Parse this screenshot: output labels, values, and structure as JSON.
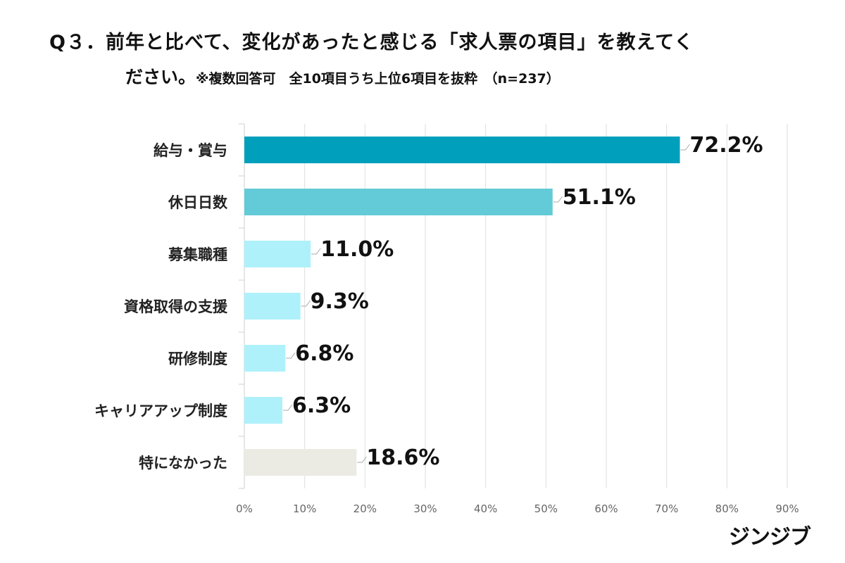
{
  "title_line1": "Q３．前年と比べて、変化があったと感じる「求人票の項目」を教えてく",
  "title_line2": "ださい。",
  "title_note": "※複数回答可　全10項目うち上位6項目を抜粋　（n=237）",
  "logo": "ジンジブ",
  "chart_data": {
    "type": "bar",
    "orientation": "horizontal",
    "categories": [
      "給与・賞与",
      "休日日数",
      "募集職種",
      "資格取得の支援",
      "研修制度",
      "キャリアアップ制度",
      "特になかった"
    ],
    "values": [
      72.2,
      51.1,
      11.0,
      9.3,
      6.8,
      6.3,
      18.6
    ],
    "data_labels": [
      "72.2%",
      "51.1%",
      "11.0%",
      "9.3%",
      "6.8%",
      "6.3%",
      "18.6%"
    ],
    "colors": [
      "#00a0bc",
      "#63cad7",
      "#aef1fb",
      "#aef1fb",
      "#aef1fb",
      "#aef1fb",
      "#ebebe4"
    ],
    "xlim": [
      0,
      90
    ],
    "xticks": [
      "0%",
      "10%",
      "20%",
      "30%",
      "40%",
      "50%",
      "60%",
      "70%",
      "80%",
      "90%"
    ],
    "grid": true,
    "legend": "none"
  }
}
